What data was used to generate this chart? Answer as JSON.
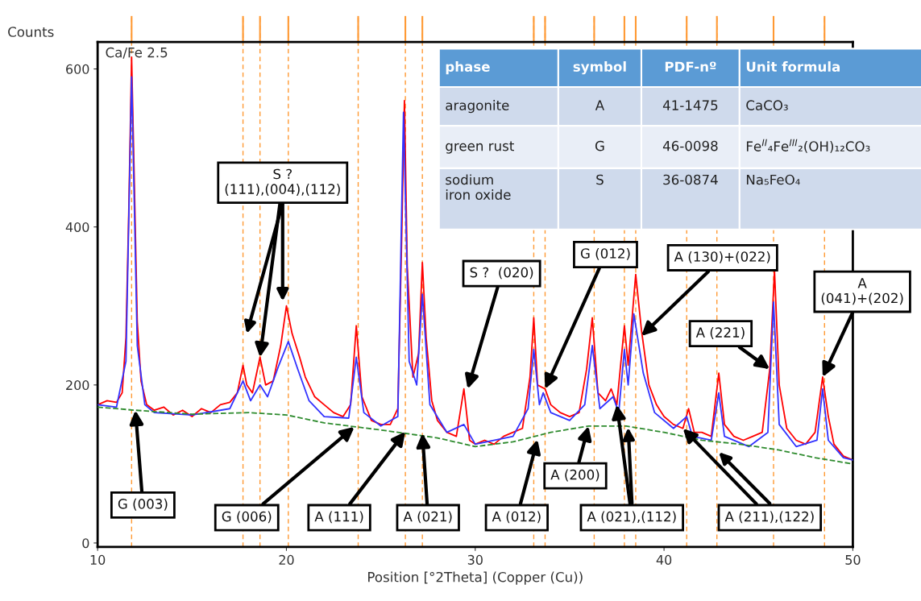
{
  "chart_data": {
    "type": "line",
    "title": "Ca/Fe 2.5",
    "xlabel": "Position [°2Theta] (Copper (Cu))",
    "ylabel": "Counts",
    "xlim": [
      10,
      50
    ],
    "ylim": [
      -5,
      634
    ],
    "xticks": [
      10,
      20,
      30,
      40,
      50
    ],
    "yticks": [
      0,
      200,
      400,
      600
    ],
    "grid": false,
    "marker": "none",
    "series": [
      {
        "color": "#ff0000",
        "line_style": "solid",
        "x": [
          10,
          10.5,
          11,
          11.3,
          11.5,
          11.65,
          11.8,
          11.95,
          12.1,
          12.3,
          12.6,
          13,
          13.5,
          14,
          14.5,
          15,
          15.5,
          16,
          16.5,
          17,
          17.4,
          17.7,
          17.9,
          18.2,
          18.6,
          18.9,
          19.3,
          19.7,
          20.0,
          20.3,
          20.7,
          21.0,
          21.5,
          22,
          22.5,
          23,
          23.4,
          23.7,
          24.0,
          24.5,
          25,
          25.5,
          25.9,
          26.1,
          26.25,
          26.4,
          26.7,
          27.0,
          27.2,
          27.4,
          27.7,
          28,
          28.5,
          29,
          29.4,
          29.7,
          30,
          30.5,
          31,
          31.5,
          32,
          32.5,
          32.9,
          33.1,
          33.3,
          33.7,
          34.0,
          34.5,
          35,
          35.5,
          35.9,
          36.2,
          36.5,
          36.9,
          37.2,
          37.5,
          37.9,
          38.1,
          38.5,
          38.8,
          39.2,
          39.6,
          40,
          40.5,
          41.0,
          41.3,
          41.6,
          42.0,
          42.5,
          42.9,
          43.2,
          43.7,
          44.2,
          44.7,
          45.2,
          45.6,
          45.85,
          46.1,
          46.5,
          47,
          47.5,
          48,
          48.4,
          48.7,
          49,
          49.5,
          50
        ],
        "values": [
          175,
          180,
          178,
          190,
          260,
          420,
          615,
          450,
          280,
          205,
          175,
          168,
          172,
          162,
          168,
          160,
          170,
          165,
          175,
          178,
          190,
          225,
          200,
          190,
          235,
          200,
          205,
          250,
          300,
          265,
          235,
          210,
          185,
          175,
          165,
          160,
          175,
          275,
          185,
          155,
          150,
          150,
          170,
          380,
          560,
          350,
          210,
          240,
          355,
          260,
          180,
          155,
          140,
          135,
          195,
          130,
          125,
          130,
          125,
          135,
          140,
          145,
          210,
          285,
          200,
          195,
          175,
          165,
          160,
          165,
          220,
          285,
          190,
          180,
          195,
          175,
          275,
          225,
          340,
          270,
          200,
          175,
          160,
          150,
          145,
          170,
          140,
          140,
          135,
          215,
          150,
          135,
          130,
          135,
          140,
          220,
          345,
          200,
          145,
          130,
          125,
          140,
          210,
          160,
          125,
          110,
          105
        ]
      },
      {
        "color": "#3333ff",
        "line_style": "solid",
        "x": [
          10,
          11,
          11.5,
          11.8,
          12.1,
          12.5,
          13,
          15,
          17,
          17.7,
          18.1,
          18.6,
          19.0,
          19.6,
          20.1,
          20.6,
          21.2,
          22,
          23.3,
          23.7,
          24.1,
          25,
          25.9,
          26.2,
          26.5,
          26.9,
          27.2,
          27.6,
          28.5,
          29.4,
          30,
          32,
          32.8,
          33.1,
          33.4,
          33.6,
          34.0,
          35,
          35.8,
          36.2,
          36.6,
          37.3,
          37.6,
          37.9,
          38.1,
          38.4,
          38.9,
          39.5,
          40.5,
          41.2,
          41.5,
          42.5,
          42.9,
          43.2,
          44.5,
          45.5,
          45.8,
          46.1,
          47,
          48.1,
          48.4,
          48.7,
          49.5,
          50
        ],
        "values": [
          175,
          172,
          230,
          590,
          250,
          175,
          165,
          162,
          170,
          205,
          180,
          200,
          185,
          225,
          255,
          220,
          180,
          160,
          158,
          235,
          165,
          148,
          160,
          545,
          230,
          200,
          315,
          175,
          140,
          150,
          125,
          135,
          170,
          245,
          175,
          190,
          165,
          155,
          175,
          250,
          170,
          185,
          165,
          245,
          200,
          290,
          215,
          165,
          145,
          160,
          135,
          130,
          190,
          135,
          122,
          140,
          305,
          150,
          122,
          130,
          195,
          130,
          108,
          105
        ]
      },
      {
        "color": "#2e8b2e",
        "line_style": "dashed",
        "x": [
          10,
          12,
          15,
          18,
          20,
          22,
          25,
          28,
          30,
          32,
          34,
          36,
          38,
          40,
          42,
          44,
          46,
          48,
          50
        ],
        "values": [
          172,
          168,
          163,
          165,
          162,
          152,
          143,
          133,
          122,
          128,
          140,
          148,
          148,
          140,
          130,
          125,
          118,
          108,
          100
        ]
      }
    ],
    "ref_lines": [
      {
        "axis": "x",
        "value": 11.8,
        "color": "#ff9933"
      },
      {
        "axis": "x",
        "value": 17.7,
        "color": "#ff9933"
      },
      {
        "axis": "x",
        "value": 18.6,
        "color": "#ff9933"
      },
      {
        "axis": "x",
        "value": 20.1,
        "color": "#ff9933"
      },
      {
        "axis": "x",
        "value": 23.8,
        "color": "#ff9933"
      },
      {
        "axis": "x",
        "value": 26.3,
        "color": "#ff9933"
      },
      {
        "axis": "x",
        "value": 27.2,
        "color": "#ff9933"
      },
      {
        "axis": "x",
        "value": 33.1,
        "color": "#ff9933"
      },
      {
        "axis": "x",
        "value": 33.7,
        "color": "#ff9933"
      },
      {
        "axis": "x",
        "value": 36.3,
        "color": "#ff9933"
      },
      {
        "axis": "x",
        "value": 37.9,
        "color": "#ff9933"
      },
      {
        "axis": "x",
        "value": 38.5,
        "color": "#ff9933"
      },
      {
        "axis": "x",
        "value": 41.2,
        "color": "#ff9933"
      },
      {
        "axis": "x",
        "value": 42.8,
        "color": "#ff9933"
      },
      {
        "axis": "x",
        "value": 45.8,
        "color": "#ff9933"
      },
      {
        "axis": "x",
        "value": 48.5,
        "color": "#ff9933"
      }
    ],
    "annotations": [
      "phase",
      "symbol",
      "PDF-nº",
      "Unit formula",
      "aragonite",
      "A",
      "41-1475",
      "CaCO₃",
      "green rust",
      "G",
      "46-0098",
      "Fe$^{II}$₄Fe$^{III}$₂(OH)₁₂CO₃",
      "sodium\niron oxide",
      "S",
      "36-0874",
      "Na₅FeO₄",
      {
        "text": "S ?\n(111),(004),(112)",
        "x": 18.6,
        "y": 235
      },
      {
        "text": "S ?  (020)",
        "x": 29.6,
        "y": 195
      },
      {
        "text": "G (012)",
        "x": 33.7,
        "y": 195
      },
      {
        "text": "A (130)+(022)",
        "x": 38.8,
        "y": 262
      },
      {
        "text": "A\n(041)+(202)",
        "x": 48.4,
        "y": 210
      },
      {
        "text": "A (221)",
        "x": 45.6,
        "y": 220
      },
      {
        "text": "G (003)",
        "x": 12,
        "y": 168
      },
      {
        "text": "G (006)",
        "x": 23.6,
        "y": 147
      },
      {
        "text": "A (111)",
        "x": 26.3,
        "y": 141
      },
      {
        "text": "A (021)",
        "x": 27.2,
        "y": 139
      },
      {
        "text": "A (012)",
        "x": 33.3,
        "y": 131
      },
      {
        "text": "A (200)",
        "x": 36,
        "y": 148
      },
      {
        "text": "A (021),(112)",
        "x": 37.5,
        "y": 175
      },
      {
        "text": "A (211),(122)",
        "x": 41.0,
        "y": 145
      }
    ]
  }
}
